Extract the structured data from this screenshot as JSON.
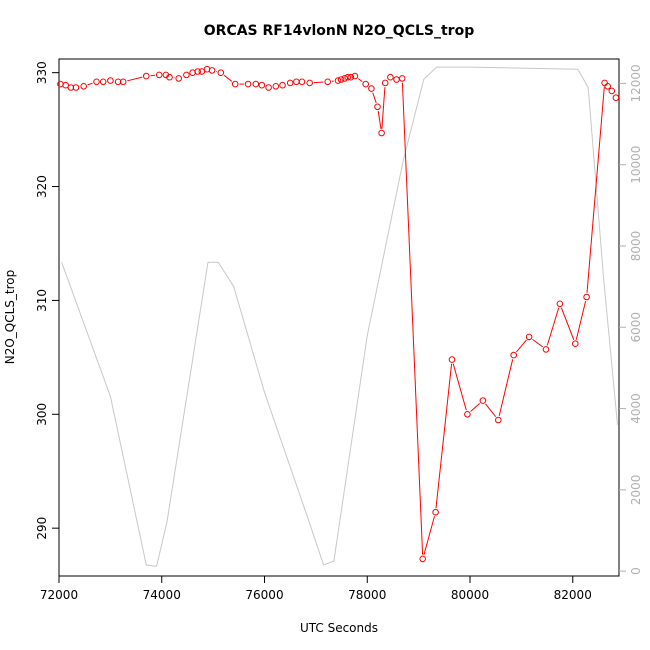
{
  "chart_data": {
    "type": "line",
    "title": "ORCAS RF14vlonN N2O_QCLS_trop",
    "xlabel": "UTC Seconds",
    "ylabel": "N2O_QCLS_trop",
    "xlim": [
      72000,
      82900
    ],
    "ylim": [
      285.8,
      331.2
    ],
    "y2lim": [
      -120,
      12600
    ],
    "x_ticks": [
      72000,
      74000,
      76000,
      78000,
      80000,
      82000
    ],
    "y_ticks": [
      290,
      300,
      310,
      320,
      330
    ],
    "y2_ticks": [
      0,
      2000,
      4000,
      6000,
      8000,
      10000,
      12000
    ],
    "grid": false,
    "colors": {
      "primary": "#ff0000",
      "secondary": "#c8c8c8"
    },
    "series": [
      {
        "role": "primary",
        "style": "line+points",
        "x": [
          72030,
          72130,
          72230,
          72330,
          72480,
          72730,
          72860,
          73000,
          73150,
          73250,
          73700,
          73950,
          74080,
          74150,
          74330,
          74480,
          74600,
          74700,
          74780,
          74880,
          74980,
          75150,
          75430,
          75680,
          75830,
          75950,
          76080,
          76220,
          76350,
          76500,
          76620,
          76730,
          76880,
          77230,
          77430,
          77490,
          77560,
          77620,
          77680,
          77760,
          77970,
          78080,
          78200,
          78280,
          78350,
          78450,
          78570,
          78680,
          79080,
          79330,
          79650,
          79950,
          80250,
          80550,
          80850,
          81150,
          81480,
          81750,
          82050,
          82270,
          82620,
          82680,
          82760,
          82840
        ],
        "y": [
          329.0,
          328.9,
          328.7,
          328.7,
          328.8,
          329.2,
          329.2,
          329.3,
          329.2,
          329.2,
          329.7,
          329.8,
          329.8,
          329.6,
          329.5,
          329.8,
          330.0,
          330.1,
          330.1,
          330.3,
          330.2,
          330.0,
          329.0,
          329.0,
          329.0,
          328.9,
          328.7,
          328.8,
          328.9,
          329.1,
          329.2,
          329.2,
          329.1,
          329.2,
          329.3,
          329.4,
          329.5,
          329.6,
          329.6,
          329.7,
          329.0,
          328.6,
          327.0,
          324.7,
          329.1,
          329.6,
          329.4,
          329.5,
          287.3,
          291.4,
          304.8,
          300.0,
          301.2,
          299.5,
          305.2,
          306.8,
          305.7,
          309.7,
          306.2,
          310.3,
          329.1,
          328.8,
          328.4,
          327.8
        ]
      },
      {
        "role": "secondary",
        "style": "line",
        "x": [
          72050,
          73000,
          73700,
          73900,
          74100,
          74900,
          75100,
          75400,
          76000,
          76900,
          77150,
          77350,
          78000,
          78700,
          79100,
          79350,
          80000,
          82100,
          82300,
          82600,
          82870
        ],
        "y": [
          7600,
          4300,
          150,
          120,
          1200,
          7600,
          7600,
          7000,
          4400,
          1100,
          150,
          250,
          5800,
          10100,
          12100,
          12400,
          12400,
          12350,
          11900,
          7200,
          3600
        ]
      }
    ]
  }
}
